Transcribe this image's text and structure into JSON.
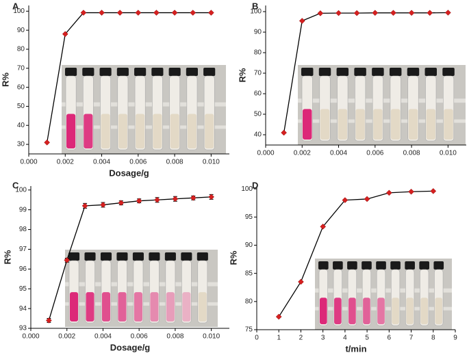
{
  "chart_data": [
    {
      "type": "line",
      "title": "A",
      "xlabel": "Dosage/g",
      "ylabel": "R%",
      "x": [
        0.001,
        0.002,
        0.003,
        0.004,
        0.005,
        0.006,
        0.007,
        0.008,
        0.009,
        0.01
      ],
      "series": [
        {
          "color": "#d62020",
          "values": [
            31,
            88,
            99.2,
            99.2,
            99.2,
            99.2,
            99.2,
            99.2,
            99.2,
            99.2
          ]
        }
      ],
      "xlim": [
        0,
        0.011
      ],
      "xticks": [
        {
          "value": 0,
          "label": "0.000"
        },
        {
          "value": 0.002,
          "label": "0.002"
        },
        {
          "value": 0.004,
          "label": "0.004"
        },
        {
          "value": 0.006,
          "label": "0.006"
        },
        {
          "value": 0.008,
          "label": "0.008"
        },
        {
          "value": 0.01,
          "label": "0.010"
        }
      ],
      "ylim": [
        25,
        103
      ],
      "yticks": [
        30,
        40,
        50,
        60,
        70,
        80,
        90,
        100
      ]
    },
    {
      "type": "line",
      "title": "B",
      "ylabel": "R%",
      "x": [
        0.001,
        0.002,
        0.003,
        0.004,
        0.005,
        0.006,
        0.007,
        0.008,
        0.009,
        0.01
      ],
      "series": [
        {
          "color": "#d62020",
          "values": [
            41,
            95.5,
            99.2,
            99.3,
            99.3,
            99.4,
            99.4,
            99.4,
            99.4,
            99.5
          ]
        }
      ],
      "xlim": [
        0,
        0.011
      ],
      "xticks": [
        {
          "value": 0,
          "label": "0.000"
        },
        {
          "value": 0.002,
          "label": "0.002"
        },
        {
          "value": 0.004,
          "label": "0.004"
        },
        {
          "value": 0.006,
          "label": "0.006"
        },
        {
          "value": 0.008,
          "label": "0.008"
        },
        {
          "value": 0.01,
          "label": "0.010"
        }
      ],
      "ylim": [
        35,
        103
      ],
      "yticks": [
        40,
        50,
        60,
        70,
        80,
        90,
        100
      ]
    },
    {
      "type": "line",
      "title": "C",
      "xlabel": "Dosage/g",
      "ylabel": "R%",
      "x": [
        0.001,
        0.002,
        0.003,
        0.004,
        0.005,
        0.006,
        0.007,
        0.008,
        0.009,
        0.01
      ],
      "series": [
        {
          "color": "#d62020",
          "values": [
            93.4,
            96.45,
            99.2,
            99.25,
            99.35,
            99.45,
            99.5,
            99.55,
            99.6,
            99.65
          ],
          "errors": [
            0.1,
            0.1,
            0.12,
            0.12,
            0.1,
            0.1,
            0.12,
            0.12,
            0.1,
            0.12
          ]
        }
      ],
      "xlim": [
        0,
        0.011
      ],
      "xticks": [
        {
          "value": 0,
          "label": "0.000"
        },
        {
          "value": 0.002,
          "label": "0.002"
        },
        {
          "value": 0.004,
          "label": "0.004"
        },
        {
          "value": 0.006,
          "label": "0.006"
        },
        {
          "value": 0.008,
          "label": "0.008"
        },
        {
          "value": 0.01,
          "label": "0.010"
        }
      ],
      "ylim": [
        93,
        100.2
      ],
      "yticks": [
        93,
        94,
        95,
        96,
        97,
        98,
        99,
        100
      ]
    },
    {
      "type": "line",
      "title": "D",
      "xlabel": "t/min",
      "ylabel": "R%",
      "x": [
        1,
        2,
        3,
        4,
        5,
        6,
        7,
        8
      ],
      "series": [
        {
          "color": "#d62020",
          "values": [
            77.3,
            83.5,
            93.3,
            98,
            98.2,
            99.3,
            99.5,
            99.6
          ]
        }
      ],
      "xlim": [
        0,
        9
      ],
      "xticks": [
        0,
        1,
        2,
        3,
        4,
        5,
        6,
        7,
        8,
        9
      ],
      "ylim": [
        75,
        100.5
      ],
      "yticks": [
        75,
        80,
        85,
        90,
        95,
        100
      ]
    }
  ]
}
